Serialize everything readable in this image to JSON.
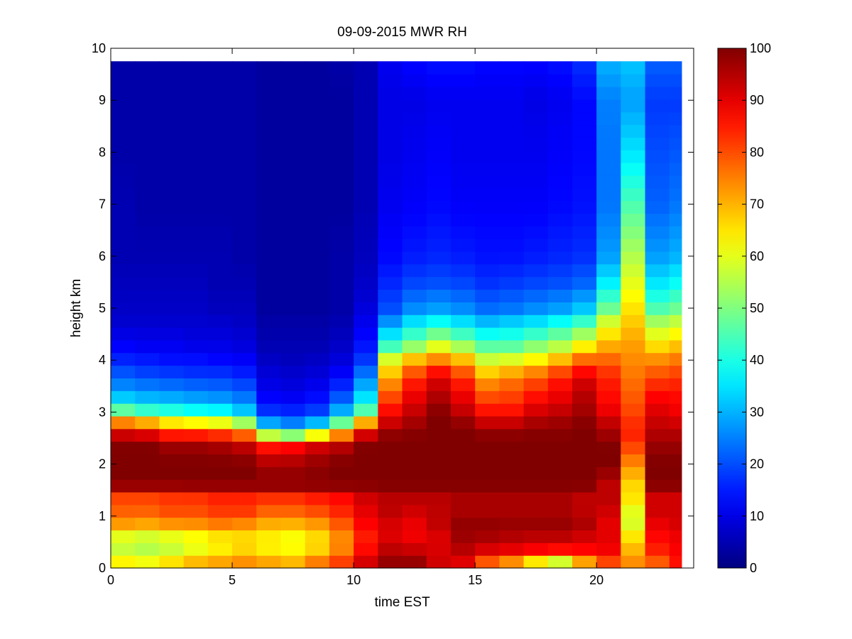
{
  "chart_data": {
    "type": "heatmap",
    "title": "09-09-2015 MWR RH",
    "xlabel": "time EST",
    "ylabel": "height km",
    "xlim": [
      0,
      24
    ],
    "ylim": [
      0,
      10
    ],
    "x_ticks": [
      0,
      5,
      10,
      15,
      20
    ],
    "y_ticks": [
      0,
      1,
      2,
      3,
      4,
      5,
      6,
      7,
      8,
      9,
      10
    ],
    "colorbar": {
      "min": 0,
      "max": 100,
      "ticks": [
        0,
        10,
        20,
        30,
        40,
        50,
        60,
        70,
        80,
        90,
        100
      ],
      "colormap": "jet"
    },
    "grid": false,
    "time_bins": [
      0,
      1,
      2,
      3,
      4,
      5,
      6,
      7,
      8,
      9,
      10,
      11,
      12,
      13,
      14,
      15,
      16,
      17,
      18,
      19,
      20,
      21,
      22,
      23
    ],
    "time_step_hours": 1,
    "data_max_time": 23.5,
    "data_max_height": 9.75,
    "profile_heights_km": [
      0,
      0.1,
      0.3,
      0.5,
      0.7,
      0.9,
      1.1,
      1.3,
      1.5,
      1.6,
      2.0,
      2.3,
      2.5,
      2.7,
      2.9,
      3.1,
      3.4,
      3.7,
      4.0,
      4.3,
      4.7,
      5.0,
      5.5,
      6.0,
      7.0,
      8.0,
      9.0,
      9.75
    ],
    "rh_profiles": [
      [
        62,
        64,
        58,
        55,
        64,
        75,
        78,
        80,
        84,
        100,
        100,
        100,
        96,
        85,
        65,
        40,
        28,
        22,
        16,
        12,
        8,
        7,
        6,
        5,
        5,
        4,
        4,
        4
      ],
      [
        60,
        62,
        56,
        54,
        62,
        74,
        78,
        80,
        84,
        100,
        100,
        100,
        95,
        82,
        60,
        36,
        27,
        20,
        15,
        11,
        8,
        7,
        6,
        5,
        4,
        4,
        4,
        4
      ],
      [
        64,
        66,
        58,
        56,
        64,
        76,
        80,
        82,
        84,
        100,
        100,
        98,
        90,
        75,
        55,
        35,
        26,
        19,
        14,
        11,
        8,
        7,
        6,
        5,
        4,
        4,
        4,
        4
      ],
      [
        68,
        70,
        62,
        58,
        66,
        76,
        80,
        82,
        85,
        100,
        100,
        98,
        90,
        74,
        52,
        33,
        25,
        18,
        14,
        10,
        8,
        7,
        6,
        5,
        4,
        4,
        4,
        4
      ],
      [
        70,
        72,
        65,
        62,
        68,
        78,
        82,
        84,
        86,
        100,
        100,
        97,
        88,
        72,
        50,
        32,
        24,
        18,
        13,
        10,
        8,
        6,
        5,
        5,
        4,
        4,
        4,
        4
      ],
      [
        72,
        74,
        68,
        64,
        68,
        76,
        82,
        84,
        86,
        100,
        100,
        95,
        84,
        65,
        42,
        28,
        22,
        16,
        12,
        9,
        7,
        6,
        5,
        4,
        4,
        4,
        4,
        4
      ],
      [
        70,
        72,
        65,
        62,
        66,
        72,
        78,
        82,
        86,
        100,
        96,
        88,
        65,
        36,
        22,
        15,
        11,
        9,
        7,
        5,
        4,
        3,
        3,
        3,
        3,
        3,
        3,
        3
      ],
      [
        68,
        70,
        64,
        60,
        64,
        72,
        78,
        82,
        86,
        100,
        96,
        90,
        60,
        30,
        20,
        14,
        10,
        8,
        6,
        5,
        4,
        3,
        3,
        3,
        3,
        3,
        3,
        3
      ],
      [
        74,
        76,
        68,
        64,
        68,
        74,
        80,
        84,
        88,
        100,
        98,
        94,
        72,
        38,
        24,
        16,
        12,
        9,
        7,
        5,
        4,
        3,
        3,
        3,
        3,
        3,
        3,
        3
      ],
      [
        80,
        82,
        76,
        72,
        76,
        80,
        84,
        86,
        90,
        100,
        100,
        96,
        82,
        58,
        38,
        26,
        18,
        13,
        9,
        7,
        5,
        4,
        4,
        4,
        3,
        3,
        3,
        4
      ],
      [
        90,
        92,
        88,
        84,
        86,
        88,
        90,
        92,
        92,
        100,
        100,
        100,
        96,
        82,
        60,
        40,
        32,
        25,
        18,
        14,
        11,
        9,
        7,
        6,
        5,
        5,
        5,
        5
      ],
      [
        100,
        98,
        95,
        92,
        90,
        92,
        94,
        94,
        96,
        100,
        100,
        100,
        100,
        95,
        90,
        85,
        78,
        70,
        60,
        42,
        28,
        20,
        16,
        13,
        11,
        10,
        10,
        11
      ],
      [
        100,
        98,
        94,
        90,
        88,
        90,
        92,
        94,
        96,
        100,
        100,
        100,
        100,
        98,
        95,
        92,
        88,
        82,
        70,
        50,
        36,
        26,
        19,
        15,
        12,
        11,
        10,
        13
      ],
      [
        95,
        92,
        92,
        90,
        92,
        94,
        94,
        94,
        96,
        100,
        100,
        100,
        100,
        100,
        100,
        98,
        94,
        90,
        75,
        58,
        40,
        28,
        20,
        16,
        13,
        12,
        11,
        14
      ],
      [
        92,
        90,
        94,
        96,
        98,
        98,
        96,
        96,
        96,
        100,
        100,
        100,
        100,
        100,
        96,
        92,
        88,
        82,
        70,
        52,
        36,
        26,
        19,
        15,
        12,
        11,
        11,
        14
      ],
      [
        80,
        78,
        90,
        94,
        98,
        98,
        96,
        96,
        96,
        100,
        100,
        100,
        100,
        96,
        90,
        84,
        78,
        70,
        58,
        45,
        32,
        23,
        17,
        14,
        12,
        11,
        11,
        13
      ],
      [
        75,
        72,
        88,
        94,
        96,
        98,
        96,
        96,
        96,
        100,
        100,
        100,
        100,
        96,
        90,
        84,
        80,
        74,
        60,
        45,
        34,
        24,
        18,
        14,
        12,
        11,
        11,
        13
      ],
      [
        65,
        62,
        86,
        92,
        96,
        98,
        96,
        96,
        96,
        100,
        100,
        100,
        100,
        98,
        94,
        90,
        84,
        78,
        64,
        50,
        36,
        26,
        19,
        15,
        12,
        11,
        10,
        13
      ],
      [
        58,
        55,
        84,
        92,
        96,
        98,
        96,
        96,
        96,
        100,
        100,
        100,
        100,
        98,
        96,
        92,
        88,
        84,
        70,
        54,
        40,
        28,
        20,
        16,
        13,
        12,
        11,
        14
      ],
      [
        72,
        70,
        86,
        90,
        94,
        96,
        94,
        94,
        94,
        100,
        100,
        100,
        100,
        100,
        98,
        96,
        94,
        90,
        78,
        62,
        45,
        32,
        22,
        17,
        14,
        13,
        13,
        17
      ],
      [
        82,
        80,
        88,
        90,
        90,
        90,
        92,
        94,
        94,
        94,
        100,
        100,
        98,
        95,
        92,
        88,
        86,
        84,
        78,
        70,
        60,
        48,
        36,
        28,
        24,
        24,
        25,
        30
      ],
      [
        86,
        74,
        70,
        68,
        62,
        58,
        60,
        64,
        68,
        66,
        74,
        80,
        84,
        84,
        82,
        80,
        78,
        76,
        74,
        72,
        68,
        65,
        60,
        55,
        45,
        35,
        28,
        32
      ],
      [
        75,
        78,
        84,
        86,
        88,
        90,
        92,
        92,
        92,
        100,
        100,
        98,
        96,
        94,
        92,
        90,
        86,
        80,
        74,
        65,
        55,
        45,
        35,
        28,
        22,
        20,
        18,
        22
      ],
      [
        85,
        86,
        88,
        88,
        90,
        92,
        92,
        92,
        92,
        100,
        100,
        98,
        96,
        94,
        90,
        88,
        86,
        82,
        76,
        68,
        58,
        48,
        38,
        30,
        24,
        21,
        18,
        22
      ]
    ]
  }
}
